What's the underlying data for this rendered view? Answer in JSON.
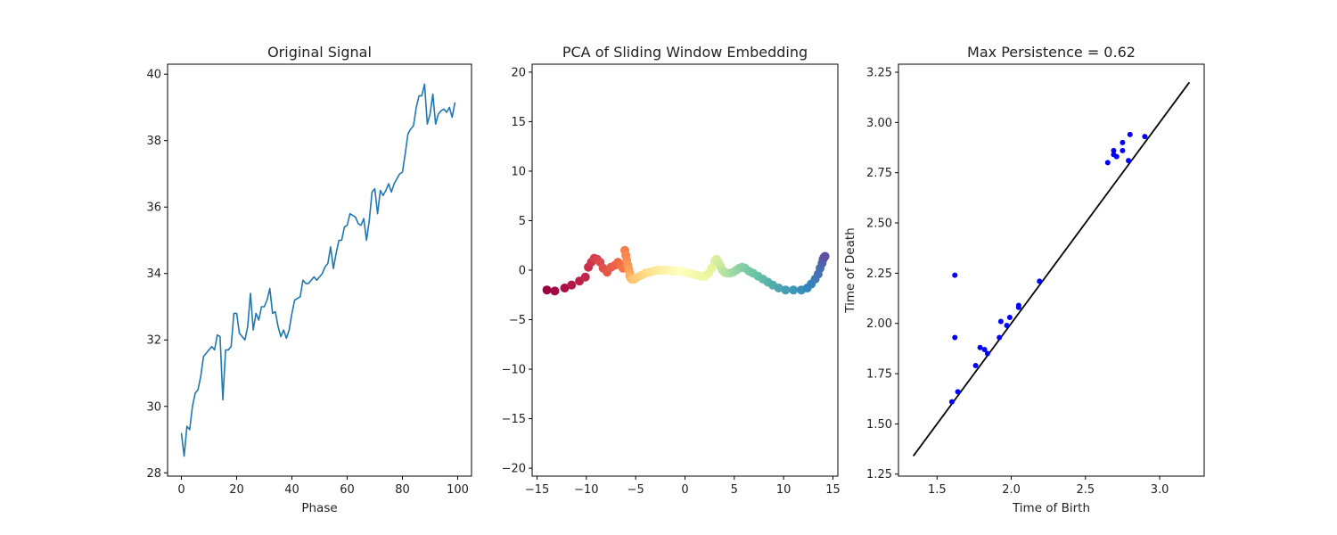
{
  "chart_data": [
    {
      "type": "line",
      "title": "Original Signal",
      "xlabel": "Phase",
      "ylabel": "",
      "xlim": [
        -5,
        105
      ],
      "ylim": [
        27.9,
        40.3
      ],
      "xticks": [
        0,
        20,
        40,
        60,
        80,
        100
      ],
      "yticks": [
        28,
        30,
        32,
        34,
        36,
        38,
        40
      ],
      "grid": false,
      "color": "#1f77b4",
      "series": [
        {
          "x": [
            0,
            1,
            2,
            3,
            4,
            5,
            6,
            7,
            8,
            9,
            10,
            11,
            12,
            13,
            14,
            15,
            16,
            17,
            18,
            19,
            20,
            21,
            22,
            23,
            24,
            25,
            26,
            27,
            28,
            29,
            30,
            31,
            32,
            33,
            34,
            35,
            36,
            37,
            38,
            39,
            40,
            41,
            42,
            43,
            44,
            45,
            46,
            47,
            48,
            49,
            50,
            51,
            52,
            53,
            54,
            55,
            56,
            57,
            58,
            59,
            60,
            61,
            62,
            63,
            64,
            65,
            66,
            67,
            68,
            69,
            70,
            71,
            72,
            73,
            74,
            75,
            76,
            77,
            78,
            79,
            80,
            81,
            82,
            83,
            84,
            85,
            86,
            87,
            88,
            89,
            90,
            91,
            92,
            93,
            94,
            95,
            96,
            97,
            98,
            99
          ],
          "y": [
            29.2,
            28.5,
            29.4,
            29.3,
            30.0,
            30.4,
            30.5,
            30.9,
            31.5,
            31.6,
            31.7,
            31.8,
            31.7,
            32.15,
            32.1,
            30.2,
            31.7,
            31.7,
            31.8,
            32.8,
            32.8,
            32.2,
            32.1,
            32.0,
            32.4,
            33.4,
            32.3,
            32.8,
            32.6,
            33.0,
            33.0,
            33.2,
            33.55,
            32.8,
            32.85,
            32.4,
            32.1,
            32.3,
            32.05,
            32.3,
            32.8,
            33.2,
            33.25,
            33.3,
            33.8,
            33.7,
            33.7,
            33.8,
            33.9,
            33.8,
            33.9,
            34.0,
            34.2,
            34.3,
            34.8,
            34.15,
            34.6,
            35.0,
            35.0,
            35.4,
            35.45,
            35.8,
            35.75,
            35.7,
            35.5,
            35.45,
            35.65,
            35.0,
            35.6,
            36.45,
            36.55,
            35.8,
            36.5,
            36.35,
            36.5,
            36.7,
            36.45,
            36.7,
            36.85,
            37.0,
            37.05,
            37.6,
            38.2,
            38.35,
            38.45,
            39.0,
            39.35,
            39.35,
            39.7,
            38.5,
            38.8,
            39.4,
            38.5,
            38.8,
            38.9,
            38.95,
            38.85,
            39.0,
            38.7,
            39.15
          ]
        }
      ]
    },
    {
      "type": "scatter",
      "title": "PCA of Sliding Window Embedding",
      "xlabel": "",
      "ylabel": "",
      "xlim": [
        -15.5,
        15.5
      ],
      "ylim": [
        -20.8,
        20.8
      ],
      "xticks": [
        -15,
        -10,
        -5,
        0,
        5,
        10,
        15
      ],
      "yticks": [
        -20,
        -15,
        -10,
        -5,
        0,
        5,
        10,
        15,
        20
      ],
      "xticklabels": [
        "−15",
        "−10",
        "−5",
        "0",
        "5",
        "10",
        "15"
      ],
      "yticklabels": [
        "−20",
        "−15",
        "−10",
        "−5",
        "0",
        "5",
        "10",
        "15",
        "20"
      ],
      "grid": false,
      "colormap": "Spectral",
      "points": {
        "x": [
          -14.0,
          -13.2,
          -12.2,
          -11.5,
          -10.7,
          -10.1,
          -9.8,
          -9.5,
          -9.2,
          -8.9,
          -8.6,
          -8.3,
          -7.9,
          -7.5,
          -7.1,
          -6.8,
          -6.5,
          -6.3,
          -6.1,
          -6.0,
          -5.9,
          -5.8,
          -5.7,
          -5.6,
          -5.6,
          -5.5,
          -5.4,
          -5.3,
          -5.1,
          -4.8,
          -4.4,
          -4.0,
          -3.6,
          -3.2,
          -2.8,
          -2.4,
          -2.0,
          -1.6,
          -1.2,
          -0.8,
          -0.4,
          0.0,
          0.4,
          0.8,
          1.2,
          1.6,
          2.0,
          2.4,
          2.7,
          3.0,
          3.2,
          3.4,
          3.6,
          3.8,
          4.0,
          4.3,
          4.6,
          4.9,
          5.2,
          5.5,
          5.8,
          6.1,
          6.5,
          6.9,
          7.4,
          7.9,
          8.4,
          8.9,
          9.5,
          10.2,
          11.0,
          11.8,
          12.4,
          12.8,
          13.2,
          13.5,
          13.7,
          13.9,
          14.0,
          14.1,
          14.2
        ],
        "y": [
          -2.0,
          -2.1,
          -1.8,
          -1.5,
          -1.1,
          -0.7,
          0.3,
          0.8,
          1.2,
          1.1,
          0.8,
          0.2,
          -0.2,
          0.3,
          0.5,
          0.8,
          0.5,
          0.2,
          2.0,
          1.5,
          1.0,
          0.5,
          0.1,
          -0.3,
          -0.6,
          -0.8,
          -0.9,
          -0.9,
          -0.9,
          -0.7,
          -0.5,
          -0.3,
          -0.2,
          -0.1,
          0.0,
          0.0,
          0.0,
          0.0,
          -0.1,
          -0.1,
          -0.1,
          -0.2,
          -0.3,
          -0.4,
          -0.5,
          -0.6,
          -0.6,
          -0.3,
          0.2,
          0.9,
          1.1,
          0.8,
          0.4,
          0.0,
          -0.2,
          -0.3,
          -0.3,
          -0.2,
          0.0,
          0.2,
          0.3,
          0.2,
          -0.1,
          -0.3,
          -0.6,
          -0.9,
          -1.2,
          -1.5,
          -1.8,
          -2.0,
          -2.0,
          -2.0,
          -1.8,
          -1.4,
          -0.9,
          -0.4,
          0.2,
          0.7,
          1.1,
          1.3,
          1.4
        ]
      }
    },
    {
      "type": "scatter",
      "title": "Max Persistence = 0.62",
      "xlabel": "Time of Birth",
      "ylabel": "Time of Death",
      "xlim": [
        1.24,
        3.3
      ],
      "ylim": [
        1.24,
        3.29
      ],
      "xticks": [
        1.5,
        2.0,
        2.5,
        3.0
      ],
      "yticks": [
        1.25,
        1.5,
        1.75,
        2.0,
        2.25,
        2.5,
        2.75,
        3.0,
        3.25
      ],
      "xticklabels": [
        "1.5",
        "2.0",
        "2.5",
        "3.0"
      ],
      "yticklabels": [
        "1.25",
        "1.50",
        "1.75",
        "2.00",
        "2.25",
        "2.50",
        "2.75",
        "3.00",
        "3.25"
      ],
      "grid": false,
      "diagonal": {
        "from": 1.34,
        "to": 3.2,
        "color": "#000000"
      },
      "point_color": "#0000ff",
      "points": {
        "x": [
          1.6,
          1.64,
          1.62,
          1.62,
          1.76,
          1.79,
          1.82,
          1.84,
          1.92,
          1.93,
          1.97,
          1.99,
          2.05,
          2.05,
          2.19,
          2.65,
          2.69,
          2.69,
          2.71,
          2.75,
          2.75,
          2.79,
          2.8,
          2.9
        ],
        "y": [
          1.61,
          1.66,
          2.24,
          1.93,
          1.79,
          1.88,
          1.87,
          1.85,
          1.93,
          2.01,
          1.99,
          2.03,
          2.08,
          2.09,
          2.21,
          2.8,
          2.84,
          2.86,
          2.83,
          2.86,
          2.9,
          2.81,
          2.94,
          2.93
        ]
      }
    }
  ]
}
